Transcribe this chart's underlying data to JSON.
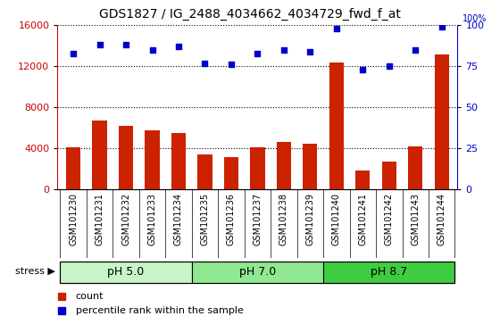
{
  "title": "GDS1827 / IG_2488_4034662_4034729_fwd_f_at",
  "samples": [
    "GSM101230",
    "GSM101231",
    "GSM101232",
    "GSM101233",
    "GSM101234",
    "GSM101235",
    "GSM101236",
    "GSM101237",
    "GSM101238",
    "GSM101239",
    "GSM101240",
    "GSM101241",
    "GSM101242",
    "GSM101243",
    "GSM101244"
  ],
  "counts": [
    4100,
    6700,
    6200,
    5800,
    5500,
    3400,
    3200,
    4100,
    4600,
    4500,
    12400,
    1900,
    2700,
    4200,
    13200
  ],
  "percentiles": [
    83,
    88,
    88,
    85,
    87,
    77,
    76,
    83,
    85,
    84,
    98,
    73,
    75,
    85,
    99
  ],
  "groups": [
    {
      "label": "pH 5.0",
      "start": 0,
      "end": 5,
      "color": "#c8f5c8"
    },
    {
      "label": "pH 7.0",
      "start": 5,
      "end": 10,
      "color": "#90e890"
    },
    {
      "label": "pH 8.7",
      "start": 10,
      "end": 15,
      "color": "#40cc40"
    }
  ],
  "bar_color": "#cc2200",
  "dot_color": "#0000cc",
  "ylim_left": [
    0,
    16000
  ],
  "ylim_right": [
    0,
    100
  ],
  "yticks_left": [
    0,
    4000,
    8000,
    12000,
    16000
  ],
  "yticks_right": [
    0,
    25,
    50,
    75,
    100
  ],
  "stress_label": "stress",
  "legend_count": "count",
  "legend_pct": "percentile rank within the sample",
  "xtick_bg_color": "#d0d0d0",
  "title_fontsize": 10,
  "axis_label_color_left": "#cc0000",
  "axis_label_color_right": "#0000cc",
  "fig_bg": "#ffffff"
}
